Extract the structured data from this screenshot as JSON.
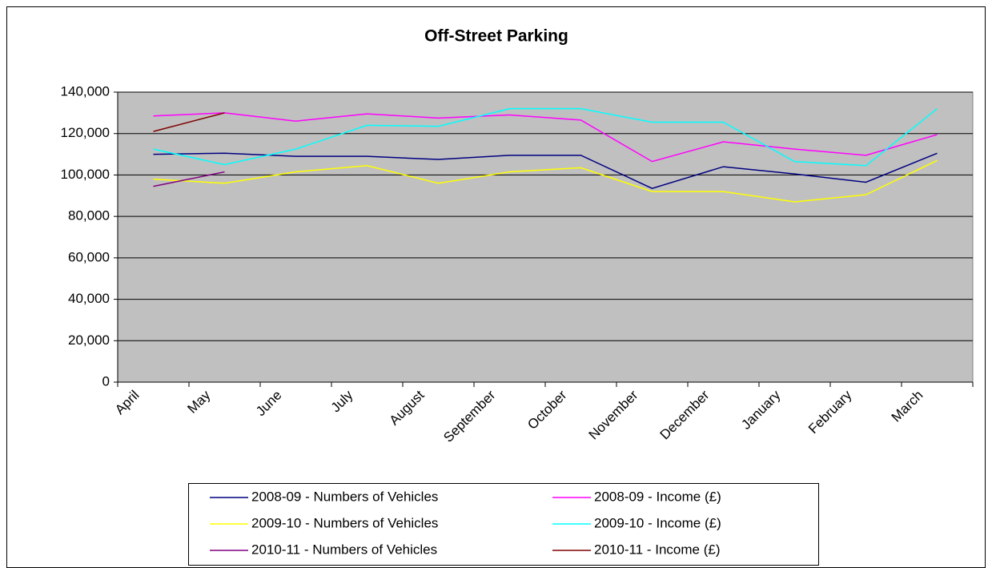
{
  "chart_data": {
    "type": "line",
    "title": "Off-Street Parking",
    "categories": [
      "April",
      "May",
      "June",
      "July",
      "August",
      "September",
      "October",
      "November",
      "December",
      "January",
      "February",
      "March"
    ],
    "series": [
      {
        "name": "2008-09 - Numbers of Vehicles",
        "color": "#000080",
        "values": [
          110000,
          110500,
          109000,
          109000,
          107500,
          109500,
          109500,
          93500,
          104000,
          100500,
          96500,
          110500
        ]
      },
      {
        "name": "2008-09 - Income (£)",
        "color": "#ff00ff",
        "values": [
          128500,
          130000,
          126000,
          129500,
          127500,
          129000,
          126500,
          106500,
          116000,
          112500,
          109500,
          119500
        ]
      },
      {
        "name": "2009-10 - Numbers of Vehicles",
        "color": "#ffff00",
        "values": [
          98000,
          96000,
          101500,
          104500,
          96000,
          101500,
          103500,
          92000,
          92000,
          87000,
          90500,
          107000
        ]
      },
      {
        "name": "2009-10 - Income (£)",
        "color": "#00ffff",
        "values": [
          112500,
          105000,
          112500,
          124000,
          123500,
          132000,
          132000,
          125500,
          125500,
          106500,
          104500,
          132000
        ]
      },
      {
        "name": "2010-11 - Numbers of Vehicles",
        "color": "#800080",
        "values": [
          94500,
          101500,
          null,
          null,
          null,
          null,
          null,
          null,
          null,
          null,
          null,
          null
        ]
      },
      {
        "name": "2010-11 - Income (£)",
        "color": "#800000",
        "values": [
          121000,
          130000,
          null,
          null,
          null,
          null,
          null,
          null,
          null,
          null,
          null,
          null
        ]
      }
    ],
    "ylim": [
      0,
      140000
    ],
    "yticks": [
      0,
      {
        "value": 20000,
        "label": "20,000"
      },
      {
        "value": 40000,
        "label": "40,000"
      },
      {
        "value": 60000,
        "label": "60,000"
      },
      {
        "value": 80000,
        "label": "80,000"
      },
      {
        "value": 100000,
        "label": "100,000"
      },
      {
        "value": 120000,
        "label": "120,000"
      },
      {
        "value": 140000,
        "label": "140,000"
      }
    ],
    "grid": true
  }
}
